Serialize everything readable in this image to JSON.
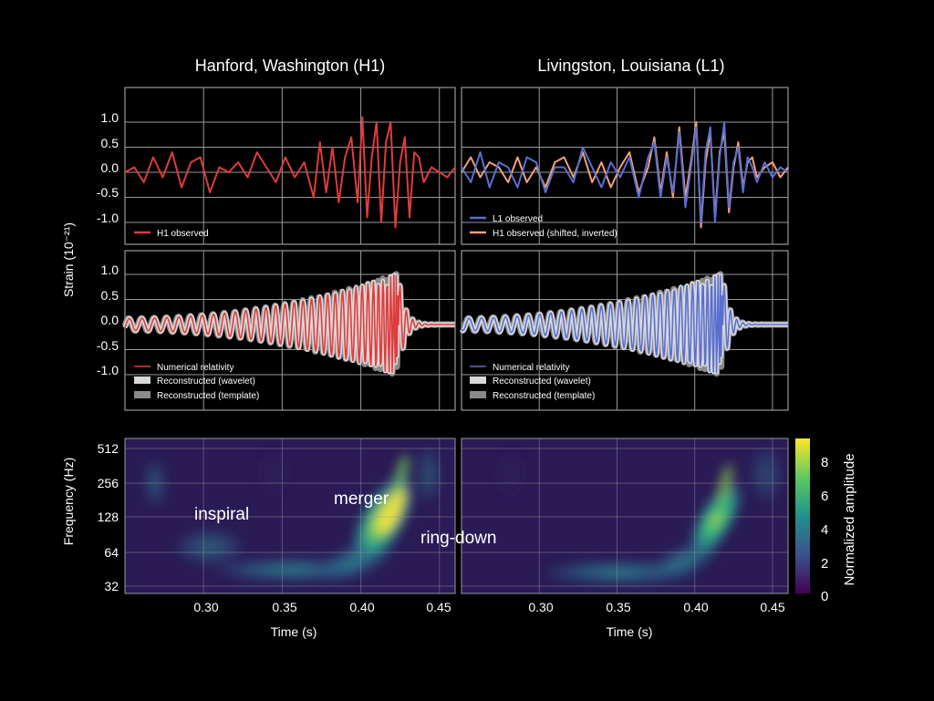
{
  "chart_data": [
    {
      "type": "line",
      "panel": "H1-observed",
      "title": "Hanford, Washington (H1)",
      "ylabel": "Strain (10⁻²¹)",
      "xlim": [
        0.25,
        0.46
      ],
      "ylim": [
        -1.3,
        1.3
      ],
      "yticks": [
        "1.0",
        "0.5",
        "0.0",
        "-0.5",
        "-1.0"
      ],
      "series": [
        {
          "name": "H1 observed",
          "color": "#e03c3c",
          "x": [
            0.25,
            0.256,
            0.262,
            0.268,
            0.274,
            0.28,
            0.286,
            0.292,
            0.298,
            0.304,
            0.31,
            0.316,
            0.322,
            0.328,
            0.334,
            0.34,
            0.346,
            0.352,
            0.358,
            0.364,
            0.37,
            0.374,
            0.378,
            0.382,
            0.386,
            0.39,
            0.394,
            0.398,
            0.401,
            0.404,
            0.407,
            0.41,
            0.413,
            0.416,
            0.419,
            0.422,
            0.425,
            0.428,
            0.431,
            0.434,
            0.437,
            0.44,
            0.445,
            0.45,
            0.455,
            0.46
          ],
          "values": [
            0.0,
            0.1,
            -0.2,
            0.3,
            -0.1,
            0.4,
            -0.3,
            0.2,
            0.3,
            -0.4,
            0.1,
            0.0,
            0.2,
            -0.1,
            0.4,
            0.1,
            -0.2,
            0.3,
            -0.1,
            0.2,
            -0.5,
            0.6,
            -0.4,
            0.5,
            -0.6,
            0.3,
            0.7,
            -0.6,
            1.1,
            -0.9,
            0.3,
            1.0,
            -1.0,
            0.6,
            1.0,
            -1.1,
            0.2,
            0.7,
            -0.9,
            0.4,
            0.3,
            -0.2,
            0.1,
            0.0,
            -0.1,
            0.1
          ]
        }
      ]
    },
    {
      "type": "line",
      "panel": "L1-observed",
      "title": "Livingston, Louisiana (L1)",
      "xlim": [
        0.25,
        0.46
      ],
      "ylim": [
        -1.3,
        1.3
      ],
      "series": [
        {
          "name": "L1 observed",
          "color": "#5a6fd0",
          "x": [
            0.25,
            0.256,
            0.262,
            0.268,
            0.274,
            0.28,
            0.286,
            0.292,
            0.298,
            0.304,
            0.31,
            0.316,
            0.322,
            0.328,
            0.334,
            0.34,
            0.346,
            0.352,
            0.358,
            0.364,
            0.37,
            0.374,
            0.378,
            0.382,
            0.386,
            0.39,
            0.394,
            0.398,
            0.401,
            0.404,
            0.407,
            0.41,
            0.413,
            0.416,
            0.419,
            0.422,
            0.425,
            0.428,
            0.431,
            0.434,
            0.437,
            0.44,
            0.445,
            0.45,
            0.455,
            0.46
          ],
          "values": [
            0.1,
            -0.2,
            0.4,
            -0.3,
            0.2,
            0.1,
            -0.3,
            0.3,
            0.2,
            -0.4,
            0.1,
            0.1,
            -0.2,
            0.5,
            0.1,
            -0.3,
            0.2,
            -0.1,
            0.3,
            -0.5,
            0.3,
            0.6,
            -0.5,
            0.3,
            -0.4,
            0.8,
            -0.7,
            0.2,
            0.9,
            -1.0,
            0.4,
            0.9,
            -1.0,
            0.3,
            1.0,
            -0.7,
            0.2,
            0.5,
            -0.4,
            0.3,
            0.1,
            -0.2,
            0.2,
            -0.1,
            0.1,
            0.0
          ]
        },
        {
          "name": "H1 observed (shifted, inverted)",
          "color": "#f2a17c",
          "x": [
            0.25,
            0.256,
            0.262,
            0.268,
            0.274,
            0.28,
            0.286,
            0.292,
            0.298,
            0.304,
            0.31,
            0.316,
            0.322,
            0.328,
            0.334,
            0.34,
            0.346,
            0.352,
            0.358,
            0.364,
            0.37,
            0.374,
            0.378,
            0.382,
            0.386,
            0.39,
            0.394,
            0.398,
            0.401,
            0.404,
            0.407,
            0.41,
            0.413,
            0.416,
            0.419,
            0.422,
            0.425,
            0.428,
            0.431,
            0.434,
            0.437,
            0.44,
            0.445,
            0.45,
            0.455,
            0.46
          ],
          "values": [
            0.0,
            0.3,
            -0.1,
            0.2,
            0.1,
            -0.2,
            0.3,
            -0.2,
            0.1,
            -0.3,
            0.2,
            0.3,
            -0.1,
            0.4,
            -0.2,
            0.2,
            -0.3,
            0.1,
            0.4,
            -0.4,
            0.1,
            0.7,
            -0.4,
            0.4,
            -0.5,
            0.9,
            -0.5,
            0.3,
            1.0,
            -1.1,
            0.2,
            0.8,
            -0.9,
            0.4,
            0.8,
            -0.8,
            0.1,
            0.6,
            -0.3,
            0.2,
            0.3,
            -0.1,
            0.1,
            0.2,
            -0.1,
            0.1
          ]
        }
      ]
    },
    {
      "type": "line",
      "panel": "H1-reconstructed",
      "xlim": [
        0.25,
        0.46
      ],
      "ylim": [
        -1.3,
        1.3
      ],
      "yticks": [
        "1.0",
        "0.5",
        "0.0",
        "-0.5",
        "-1.0"
      ],
      "series": [
        {
          "name": "Numerical relativity",
          "color": "#e03c3c"
        },
        {
          "name": "Reconstructed (wavelet)",
          "color": "#d8d8d8"
        },
        {
          "name": "Reconstructed (template)",
          "color": "#8a8a8a"
        }
      ]
    },
    {
      "type": "line",
      "panel": "L1-reconstructed",
      "xlim": [
        0.25,
        0.46
      ],
      "ylim": [
        -1.3,
        1.3
      ],
      "series": [
        {
          "name": "Numerical relativity",
          "color": "#5a6fd0"
        },
        {
          "name": "Reconstructed (wavelet)",
          "color": "#d8d8d8"
        },
        {
          "name": "Reconstructed (template)",
          "color": "#8a8a8a"
        }
      ]
    },
    {
      "type": "heatmap",
      "panel": "H1-spectrogram",
      "xlabel": "Time (s)",
      "ylabel": "Frequency (Hz)",
      "xlim": [
        0.25,
        0.46
      ],
      "xticks": [
        "0.30",
        "0.35",
        "0.40",
        "0.45"
      ],
      "yticks": [
        "512",
        "256",
        "128",
        "64",
        "32"
      ],
      "annotations": [
        "inspiral",
        "merger",
        "ring-down"
      ],
      "scale": "log"
    },
    {
      "type": "heatmap",
      "panel": "L1-spectrogram",
      "xlabel": "Time (s)",
      "xlim": [
        0.25,
        0.46
      ],
      "xticks": [
        "0.30",
        "0.35",
        "0.40",
        "0.45"
      ],
      "colorbar": {
        "label": "Normalized amplitude",
        "range": [
          0,
          9
        ],
        "ticks": [
          "8",
          "6",
          "4",
          "2",
          "0"
        ]
      }
    }
  ],
  "fig_colors": {
    "background": "#000000",
    "frame": "#9a9a9a",
    "grid": "#9a9a9a"
  }
}
